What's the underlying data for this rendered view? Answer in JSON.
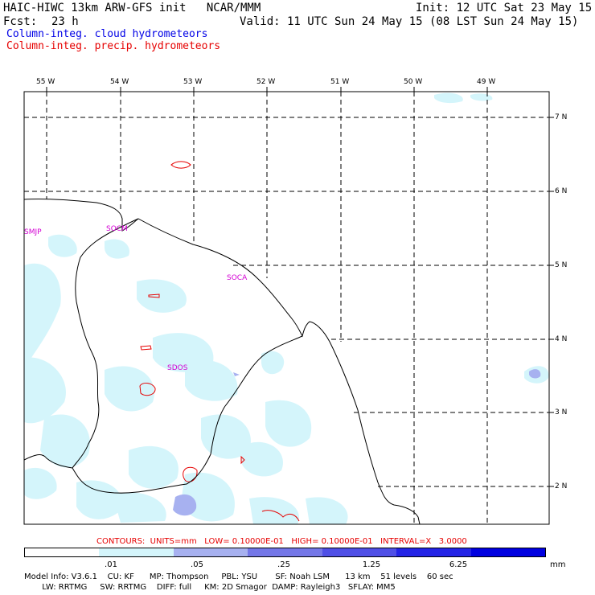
{
  "header": {
    "title_left": "HAIC-HIWC 13km ARW-GFS init   NCAR/MMM",
    "init": "Init: 12 UTC Sat 23 May 15",
    "fcst_label": "Fcst:",
    "fcst_value": "23 h",
    "valid": "Valid: 11 UTC Sun 24 May 15 (08 LST Sun 24 May 15)",
    "field_cloud": "Column-integ. cloud hydrometeors",
    "field_precip": "Column-integ. precip. hydrometeors"
  },
  "map": {
    "lon_labels": [
      "55 W",
      "54 W",
      "53 W",
      "52 W",
      "51 W",
      "50 W",
      "49 W"
    ],
    "lat_labels": [
      "7 N",
      "6 N",
      "5 N",
      "4 N",
      "3 N",
      "2 N"
    ],
    "stations": [
      "SMJP",
      "SOCM",
      "SOCA",
      "SDOS"
    ]
  },
  "contours": "CONTOURS:  UNITS=mm   LOW= 0.10000E-01   HIGH= 0.10000E-01   INTERVAL=X   3.0000",
  "colorbar": {
    "ticks": [
      ".01",
      ".05",
      ".25",
      "1.25",
      "6.25"
    ],
    "units": "mm",
    "colors": [
      "#ffffff",
      "#d4f5fb",
      "#a7b1f0",
      "#7477e8",
      "#4f4fe6",
      "#2323e6",
      "#0000e0"
    ]
  },
  "model_info": {
    "line1": "Model Info: V3.6.1    CU: KF      MP: Thompson     PBL: YSU       SF: Noah LSM      13 km    51 levels    60 sec",
    "line2": "       LW: RRTMG     SW: RRTMG    DIFF: full     KM: 2D Smagor  DAMP: Rayleigh3   SFLAY: MM5"
  }
}
